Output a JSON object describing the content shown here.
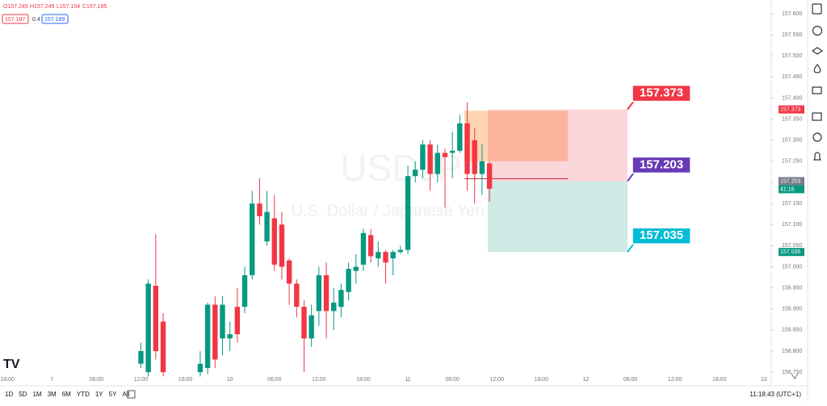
{
  "header": {
    "open": "O157.245",
    "high": "H157.249",
    "low": "L157.154",
    "close": "C157.185",
    "bid": "157.187",
    "spread": "0.4",
    "ask": "157.189"
  },
  "watermark": {
    "symbol": "USDJPY",
    "name": "U.S. Dollar / Japanese Yen"
  },
  "position": {
    "target": 157.373,
    "entry": 157.203,
    "stop": 157.035,
    "countdown": "41:16"
  },
  "toolbar": {
    "ranges": [
      "1D",
      "5D",
      "1M",
      "3M",
      "6M",
      "YTD",
      "1Y",
      "5Y",
      "All"
    ],
    "clock": "11:18:43 (UTC+1)"
  },
  "chart_data": {
    "type": "candlestick",
    "x": [
      18,
      19,
      20,
      21,
      26,
      27,
      28,
      29,
      30,
      31,
      32,
      33,
      34,
      35,
      36,
      37,
      38,
      39,
      40,
      41,
      42,
      43,
      44,
      45,
      46,
      47,
      48,
      49,
      50,
      51,
      52,
      53,
      54,
      55,
      56,
      57,
      58,
      59,
      60,
      61,
      62,
      63,
      64,
      65
    ],
    "open": [
      156.77,
      156.75,
      156.955,
      156.87,
      156.75,
      156.76,
      156.91,
      156.83,
      156.83,
      156.905,
      156.905,
      156.98,
      157.15,
      157.06,
      157.115,
      157.1,
      157.015,
      156.96,
      156.905,
      156.83,
      156.895,
      156.98,
      156.895,
      156.905,
      156.94,
      156.99,
      157.005,
      157.075,
      157.02,
      157.035,
      157.02,
      157.035,
      157.04,
      157.215,
      157.23,
      157.29,
      157.22,
      157.27,
      157.27,
      157.275,
      157.34,
      157.3,
      157.22,
      157.245
    ],
    "high": [
      156.82,
      156.97,
      157.077,
      156.89,
      156.8,
      156.915,
      156.93,
      156.93,
      156.87,
      156.95,
      157.0,
      157.18,
      157.21,
      157.18,
      157.17,
      157.13,
      157.02,
      156.97,
      156.92,
      156.91,
      157.0,
      157.01,
      156.95,
      156.96,
      157.01,
      157.03,
      157.09,
      157.09,
      157.06,
      157.04,
      157.04,
      157.05,
      157.24,
      157.25,
      157.3,
      157.3,
      157.29,
      157.28,
      157.32,
      157.36,
      157.39,
      157.33,
      157.29,
      157.249
    ],
    "low": [
      156.76,
      156.74,
      156.78,
      156.74,
      156.74,
      156.745,
      156.76,
      156.79,
      156.8,
      156.82,
      156.89,
      156.97,
      157.1,
      157.05,
      156.99,
      156.97,
      156.91,
      156.88,
      156.75,
      156.81,
      156.86,
      156.83,
      156.85,
      156.88,
      156.92,
      156.96,
      156.99,
      157.01,
      157.0,
      156.96,
      156.98,
      157.03,
      157.03,
      157.2,
      157.21,
      157.18,
      157.2,
      157.14,
      157.21,
      157.27,
      157.18,
      157.15,
      157.17,
      157.154
    ],
    "close": [
      156.8,
      156.96,
      156.8,
      156.75,
      156.77,
      156.91,
      156.78,
      156.91,
      156.84,
      156.84,
      156.98,
      157.15,
      157.12,
      157.13,
      157.005,
      157.0,
      156.96,
      156.905,
      156.83,
      156.885,
      156.98,
      156.895,
      156.915,
      156.945,
      156.995,
      157.0,
      157.08,
      157.025,
      157.035,
      157.01,
      157.035,
      157.04,
      157.215,
      157.23,
      157.29,
      157.22,
      157.27,
      157.26,
      157.275,
      157.34,
      157.22,
      157.22,
      157.25,
      157.185
    ],
    "up_color": "#089981",
    "down_color": "#f23645",
    "xlim": [
      -1,
      103
    ],
    "xticks": [
      {
        "value": 0,
        "label": "18:00"
      },
      {
        "value": 6,
        "label": "7"
      },
      {
        "value": 12,
        "label": "06:00"
      },
      {
        "value": 18,
        "label": "12:00"
      },
      {
        "value": 24,
        "label": "18:00"
      },
      {
        "value": 30,
        "label": "10"
      },
      {
        "value": 36,
        "label": "06:00"
      },
      {
        "value": 42,
        "label": "12:00"
      },
      {
        "value": 48,
        "label": "18:00"
      },
      {
        "value": 54,
        "label": "11"
      },
      {
        "value": 60,
        "label": "06:00"
      },
      {
        "value": 66,
        "label": "12:00"
      },
      {
        "value": 72,
        "label": "18:00"
      },
      {
        "value": 78,
        "label": "12"
      },
      {
        "value": 84,
        "label": "06:00"
      },
      {
        "value": 90,
        "label": "12:00"
      },
      {
        "value": 96,
        "label": "18:00"
      },
      {
        "value": 102,
        "label": "13"
      }
    ],
    "ylim": [
      156.733,
      157.6325
    ],
    "yticks": [
      {
        "value": 157.6,
        "label": "157.600"
      },
      {
        "value": 157.55,
        "label": "157.550"
      },
      {
        "value": 157.5,
        "label": "157.500"
      },
      {
        "value": 157.45,
        "label": "157.450"
      },
      {
        "value": 157.4,
        "label": "157.400"
      },
      {
        "value": 157.35,
        "label": "157.350"
      },
      {
        "value": 157.3,
        "label": "157.300"
      },
      {
        "value": 157.25,
        "label": "157.250"
      },
      {
        "value": 157.2,
        "label": "157.200"
      },
      {
        "value": 157.15,
        "label": "157.150"
      },
      {
        "value": 157.1,
        "label": "157.100"
      },
      {
        "value": 157.05,
        "label": "157.050"
      },
      {
        "value": 157,
        "label": "157.000"
      },
      {
        "value": 156.95,
        "label": "156.950"
      },
      {
        "value": 156.9,
        "label": "156.900"
      },
      {
        "value": 156.85,
        "label": "156.850"
      },
      {
        "value": 156.8,
        "label": "156.800"
      },
      {
        "value": 156.75,
        "label": "156.750"
      }
    ]
  }
}
